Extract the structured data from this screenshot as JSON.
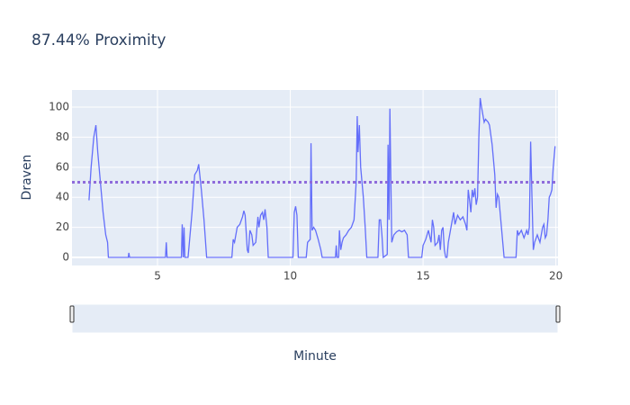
{
  "chart_data": {
    "type": "line",
    "title": "87.44% Proximity",
    "x_label": "Minute",
    "y_label": "Draven",
    "xlim": [
      1.78,
      20.08
    ],
    "ylim": [
      -5.4,
      111.4
    ],
    "xticks": [
      5,
      10,
      15,
      20
    ],
    "yticks": [
      0,
      20,
      40,
      60,
      80,
      100
    ],
    "grid": true,
    "hline": {
      "value": 50,
      "color": "#8e6bdb"
    },
    "range_slider": true,
    "x": [
      2.42,
      2.5,
      2.6,
      2.68,
      2.75,
      2.85,
      2.95,
      3.05,
      3.12,
      3.15,
      3.9,
      3.92,
      3.95,
      5.3,
      5.33,
      5.36,
      5.9,
      5.93,
      5.97,
      6.0,
      6.03,
      6.15,
      6.3,
      6.4,
      6.5,
      6.55,
      6.65,
      6.75,
      6.85,
      7.8,
      7.85,
      7.9,
      8.0,
      8.1,
      8.2,
      8.25,
      8.3,
      8.38,
      8.42,
      8.48,
      8.55,
      8.6,
      8.7,
      8.78,
      8.82,
      8.88,
      8.95,
      9.0,
      9.05,
      9.12,
      9.17,
      10.1,
      10.15,
      10.2,
      10.25,
      10.3,
      10.6,
      10.65,
      10.75,
      10.78,
      10.82,
      10.88,
      10.95,
      11.05,
      11.15,
      11.2,
      11.7,
      11.73,
      11.76,
      11.82,
      11.85,
      11.9,
      11.95,
      12.0,
      12.1,
      12.2,
      12.3,
      12.4,
      12.48,
      12.52,
      12.55,
      12.6,
      12.65,
      12.75,
      12.82,
      12.88,
      13.3,
      13.35,
      13.4,
      13.45,
      13.5,
      13.65,
      13.68,
      13.72,
      13.75,
      13.78,
      13.82,
      13.9,
      14.0,
      14.1,
      14.2,
      14.3,
      14.4,
      14.45,
      14.95,
      15.0,
      15.1,
      15.2,
      15.3,
      15.35,
      15.4,
      15.45,
      15.55,
      15.6,
      15.65,
      15.7,
      15.75,
      15.8,
      15.85,
      15.9,
      15.95,
      16.05,
      16.15,
      16.2,
      16.3,
      16.4,
      16.5,
      16.6,
      16.65,
      16.7,
      16.75,
      16.8,
      16.85,
      16.9,
      16.95,
      17.0,
      17.05,
      17.1,
      17.15,
      17.2,
      17.3,
      17.35,
      17.45,
      17.5,
      17.6,
      17.7,
      17.75,
      17.8,
      17.85,
      17.9,
      18.0,
      18.05,
      18.5,
      18.55,
      18.6,
      18.7,
      18.8,
      18.9,
      18.95,
      19.0,
      19.05,
      19.1,
      19.15,
      19.2,
      19.3,
      19.4,
      19.5,
      19.55,
      19.6,
      19.65,
      19.7,
      19.75,
      19.8,
      19.85,
      19.9,
      19.97
    ],
    "series": [
      {
        "color": "#636efa",
        "values": [
          38,
          60,
          80,
          88,
          70,
          50,
          30,
          15,
          10,
          0,
          0,
          3,
          0,
          0,
          10,
          0,
          0,
          22,
          0,
          20,
          0,
          0,
          30,
          55,
          58,
          62,
          45,
          25,
          0,
          0,
          12,
          10,
          20,
          22,
          27,
          31,
          28,
          5,
          3,
          18,
          15,
          8,
          10,
          27,
          20,
          28,
          30,
          25,
          32,
          20,
          0,
          0,
          30,
          34,
          28,
          0,
          0,
          10,
          12,
          76,
          18,
          20,
          18,
          12,
          5,
          0,
          0,
          8,
          0,
          0,
          18,
          5,
          10,
          13,
          15,
          18,
          20,
          25,
          50,
          94,
          70,
          88,
          60,
          40,
          20,
          0,
          0,
          25,
          25,
          15,
          0,
          2,
          75,
          25,
          99,
          60,
          10,
          15,
          17,
          18,
          17,
          18,
          15,
          0,
          0,
          8,
          12,
          18,
          10,
          25,
          20,
          8,
          10,
          15,
          5,
          18,
          20,
          5,
          0,
          0,
          10,
          20,
          30,
          22,
          28,
          25,
          27,
          22,
          18,
          45,
          38,
          30,
          45,
          40,
          46,
          35,
          40,
          80,
          106,
          100,
          90,
          92,
          90,
          88,
          75,
          55,
          33,
          42,
          40,
          30,
          10,
          0,
          0,
          18,
          15,
          18,
          13,
          18,
          15,
          20,
          77,
          40,
          5,
          10,
          15,
          10,
          20,
          22,
          13,
          15,
          25,
          40,
          42,
          45,
          60,
          74
        ]
      }
    ]
  }
}
